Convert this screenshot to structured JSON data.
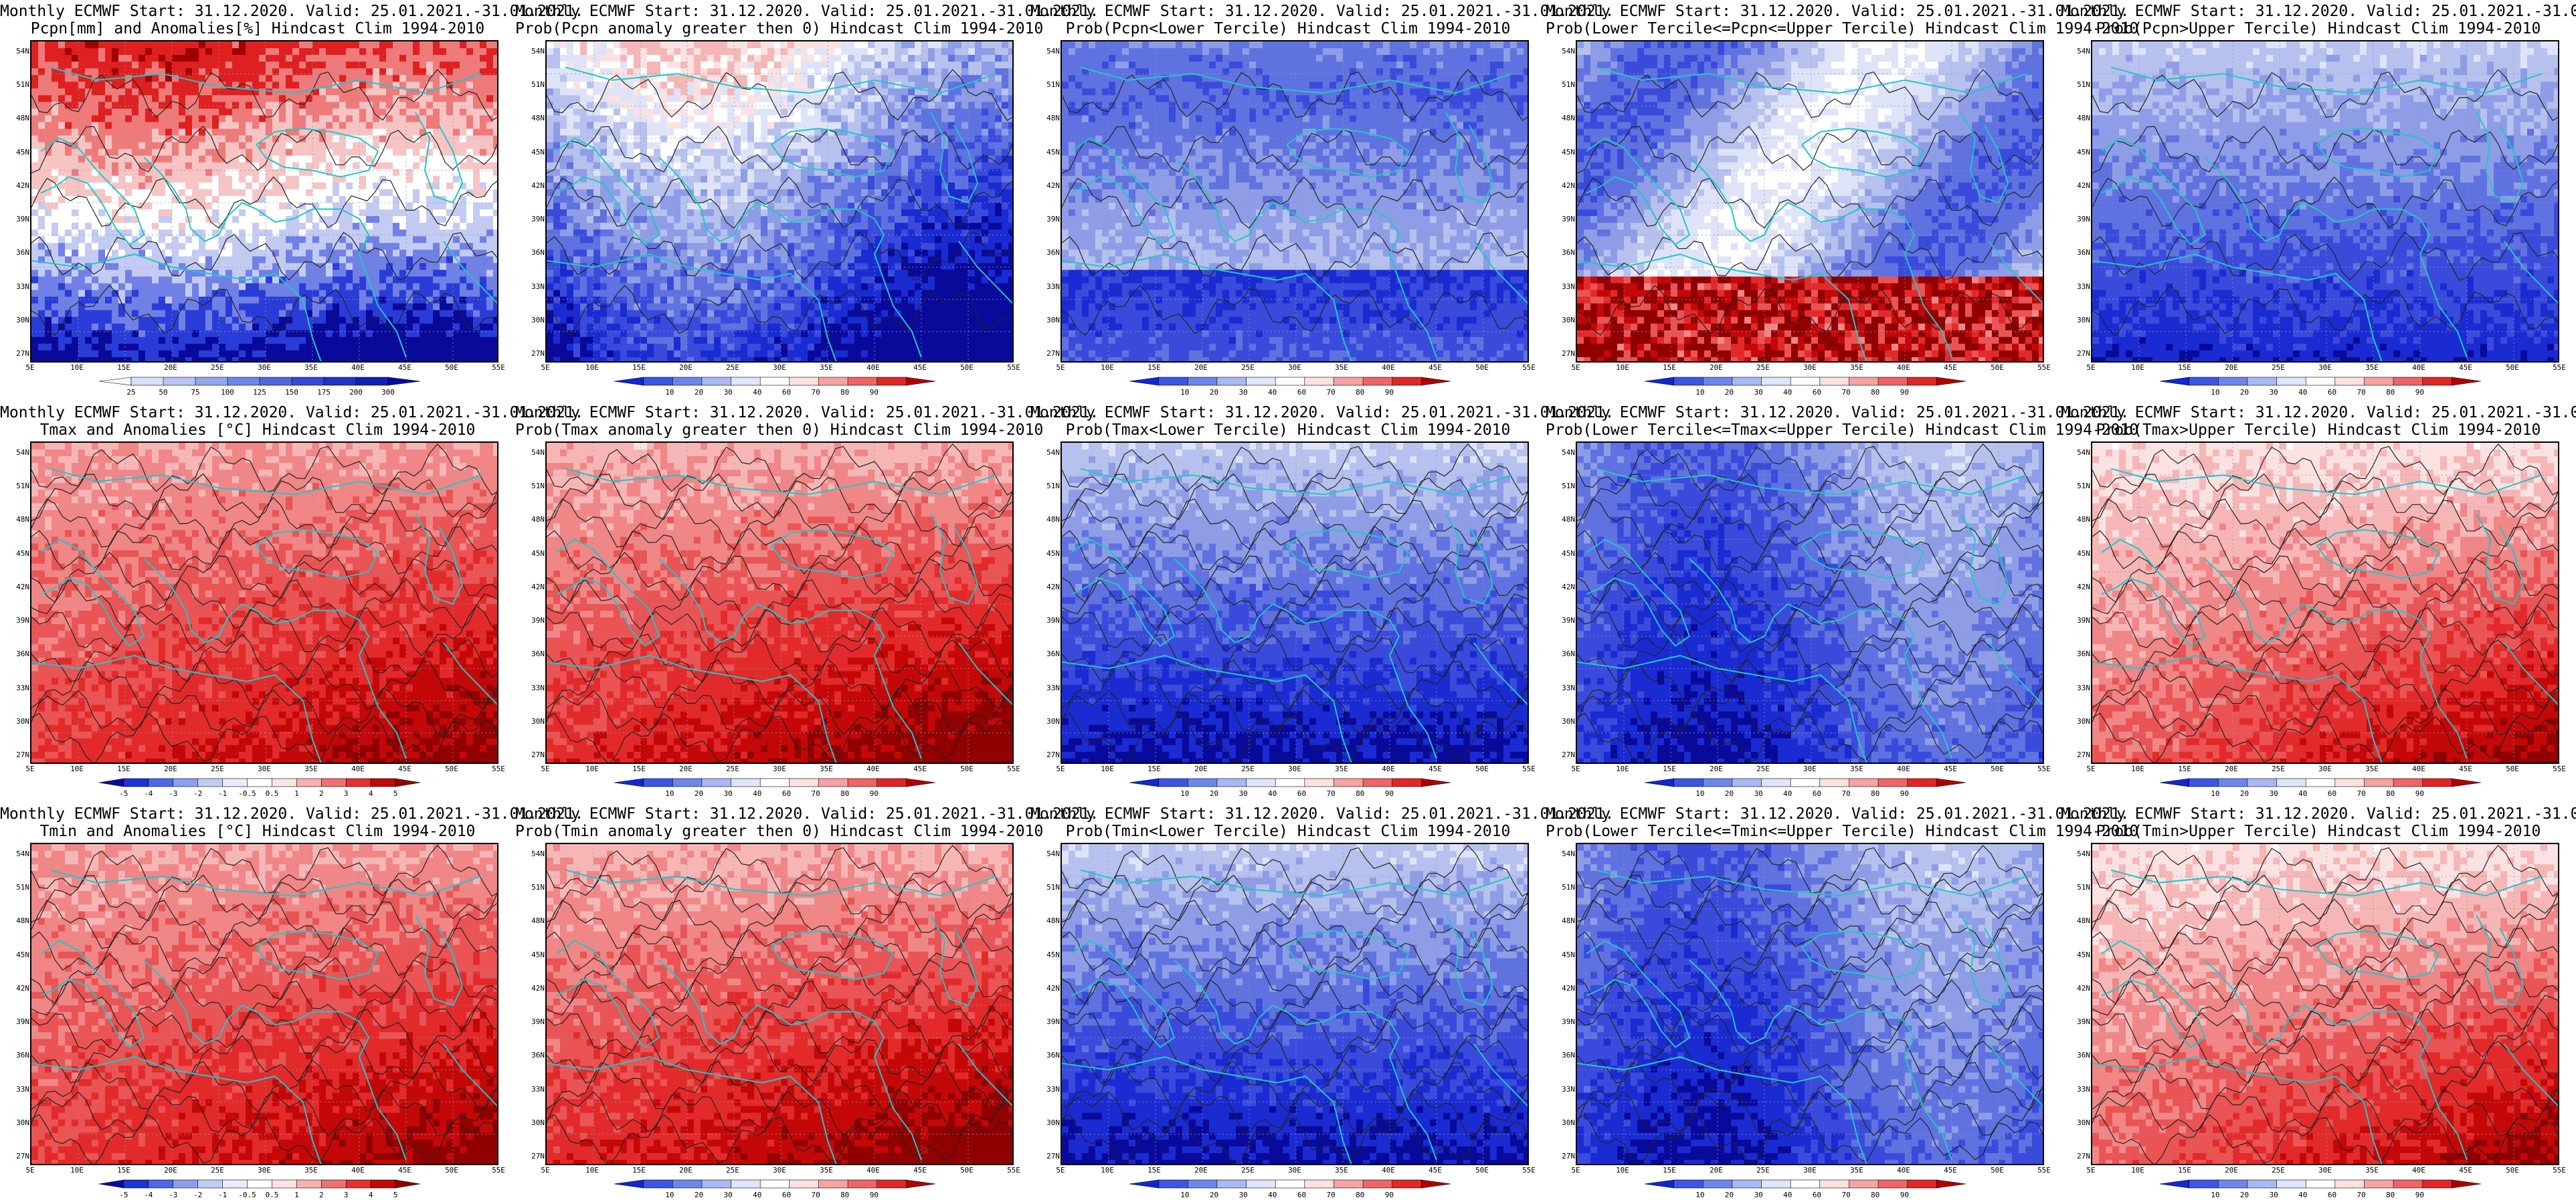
{
  "title_line1": "Monthly ECMWF Start: 31.12.2020. Valid: 25.01.2021.-31.01.2021.",
  "lat_ticks": [
    "54N",
    "51N",
    "48N",
    "45N",
    "42N",
    "39N",
    "36N",
    "33N",
    "30N",
    "27N"
  ],
  "lon_ticks": [
    "5E",
    "10E",
    "15E",
    "20E",
    "25E",
    "30E",
    "35E",
    "40E",
    "45E",
    "50E",
    "55E"
  ],
  "colorbars": {
    "anom_pcpn": {
      "labels": [
        "25",
        "50",
        "75",
        "100",
        "125",
        "150",
        "175",
        "200",
        "300"
      ]
    },
    "prob": {
      "labels": [
        "10",
        "20",
        "30",
        "40",
        "60",
        "70",
        "80",
        "90"
      ]
    },
    "anom_temp": {
      "labels": [
        "-5",
        "-4",
        "-3",
        "-2",
        "-1",
        "-0.5",
        "0.5",
        "1",
        "2",
        "3",
        "4",
        "5"
      ]
    }
  },
  "colors": {
    "map_blue": "#1830d8",
    "map_dark_blue": "#0a0a9a",
    "map_red": "#e42020",
    "map_dark_red": "#a00000",
    "coast": "#22c6c8",
    "contour": "#222222"
  },
  "panels": [
    {
      "row": 0,
      "col": 0,
      "title2": "Pcpn[mm] and Anomalies[%] Hindcast Clim 1994-2010",
      "scheme": "pcpn_anom",
      "cbar": "anom_pcpn"
    },
    {
      "row": 0,
      "col": 1,
      "title2": "Prob(Pcpn anomaly greater then 0) Hindcast Clim 1994-2010",
      "scheme": "pcpn_prob_pos",
      "cbar": "prob"
    },
    {
      "row": 0,
      "col": 2,
      "title2": "Prob(Pcpn<Lower Tercile) Hindcast Clim 1994-2010",
      "scheme": "pcpn_lower",
      "cbar": "prob"
    },
    {
      "row": 0,
      "col": 3,
      "title2": "Prob(Lower Tercile<=Pcpn<=Upper Tercile) Hindcast Clim 1994-2010",
      "scheme": "pcpn_middle",
      "cbar": "prob"
    },
    {
      "row": 0,
      "col": 4,
      "title2": "Prob(Pcpn>Upper Tercile) Hindcast Clim 1994-2010",
      "scheme": "pcpn_upper",
      "cbar": "prob"
    },
    {
      "row": 1,
      "col": 0,
      "title2": "Tmax and Anomalies [°C] Hindcast Clim 1994-2010",
      "scheme": "temp_anom",
      "cbar": "anom_temp"
    },
    {
      "row": 1,
      "col": 1,
      "title2": "Prob(Tmax anomaly greater then 0) Hindcast Clim 1994-2010",
      "scheme": "temp_prob_pos",
      "cbar": "prob"
    },
    {
      "row": 1,
      "col": 2,
      "title2": "Prob(Tmax<Lower Tercile) Hindcast Clim 1994-2010",
      "scheme": "temp_lower",
      "cbar": "prob"
    },
    {
      "row": 1,
      "col": 3,
      "title2": "Prob(Lower Tercile<=Tmax<=Upper Tercile) Hindcast Clim 1994-2010",
      "scheme": "temp_middle",
      "cbar": "prob"
    },
    {
      "row": 1,
      "col": 4,
      "title2": "Prob(Tmax>Upper Tercile) Hindcast Clim 1994-2010",
      "scheme": "temp_upper",
      "cbar": "prob"
    },
    {
      "row": 2,
      "col": 0,
      "title2": "Tmin and Anomalies [°C] Hindcast Clim 1994-2010",
      "scheme": "temp_anom",
      "cbar": "anom_temp"
    },
    {
      "row": 2,
      "col": 1,
      "title2": "Prob(Tmin anomaly greater then 0) Hindcast Clim 1994-2010",
      "scheme": "temp_prob_pos",
      "cbar": "prob"
    },
    {
      "row": 2,
      "col": 2,
      "title2": "Prob(Tmin<Lower Tercile) Hindcast Clim 1994-2010",
      "scheme": "temp_lower",
      "cbar": "prob"
    },
    {
      "row": 2,
      "col": 3,
      "title2": "Prob(Lower Tercile<=Tmin<=Upper Tercile) Hindcast Clim 1994-2010",
      "scheme": "temp_middle",
      "cbar": "prob"
    },
    {
      "row": 2,
      "col": 4,
      "title2": "Prob(Tmin>Upper Tercile) Hindcast Clim 1994-2010",
      "scheme": "temp_upper",
      "cbar": "prob"
    }
  ]
}
